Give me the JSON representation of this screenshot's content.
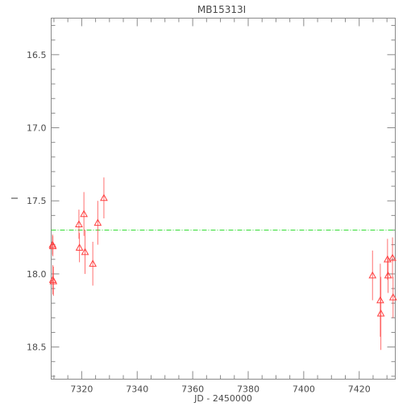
{
  "chart_data": {
    "type": "scatter",
    "title": "MB15313I",
    "xlabel": "JD - 2450000",
    "ylabel": "I",
    "xlim": [
      7309,
      7433
    ],
    "ylim": [
      18.72,
      16.25
    ],
    "y_inverted": true,
    "x_ticks": [
      "7320",
      "7340",
      "7360",
      "7380",
      "7400",
      "7420"
    ],
    "y_ticks": [
      "16.5",
      "17.0",
      "17.5",
      "18.0",
      "18.5"
    ],
    "grid": false,
    "colors": {
      "points": "#ff4040",
      "reference_line": "#33dd33",
      "axes": "#8a8a8a"
    },
    "reference_line": {
      "y": 17.7,
      "style": "dash-dot"
    },
    "series": [
      {
        "marker": "open-triangle",
        "points": [
          {
            "x": 7309.5,
            "y": 17.8,
            "err": 0.07
          },
          {
            "x": 7309.6,
            "y": 17.81,
            "err": 0.07
          },
          {
            "x": 7309.6,
            "y": 18.04,
            "err": 0.1
          },
          {
            "x": 7309.8,
            "y": 18.05,
            "err": 0.1
          },
          {
            "x": 7319.0,
            "y": 17.66,
            "err": 0.1
          },
          {
            "x": 7319.2,
            "y": 17.82,
            "err": 0.1
          },
          {
            "x": 7320.8,
            "y": 17.59,
            "err": 0.15
          },
          {
            "x": 7321.2,
            "y": 17.85,
            "err": 0.15
          },
          {
            "x": 7324.0,
            "y": 17.93,
            "err": 0.15
          },
          {
            "x": 7325.8,
            "y": 17.65,
            "err": 0.15
          },
          {
            "x": 7328.0,
            "y": 17.48,
            "err": 0.14
          },
          {
            "x": 7424.8,
            "y": 18.01,
            "err": 0.17
          },
          {
            "x": 7427.6,
            "y": 18.18,
            "err": 0.25
          },
          {
            "x": 7427.8,
            "y": 18.27,
            "err": 0.25
          },
          {
            "x": 7430.2,
            "y": 17.9,
            "err": 0.14
          },
          {
            "x": 7430.4,
            "y": 18.01,
            "err": 0.12
          },
          {
            "x": 7432.0,
            "y": 17.89,
            "err": 0.14
          },
          {
            "x": 7432.2,
            "y": 18.16,
            "err": 0.14
          }
        ]
      }
    ]
  }
}
